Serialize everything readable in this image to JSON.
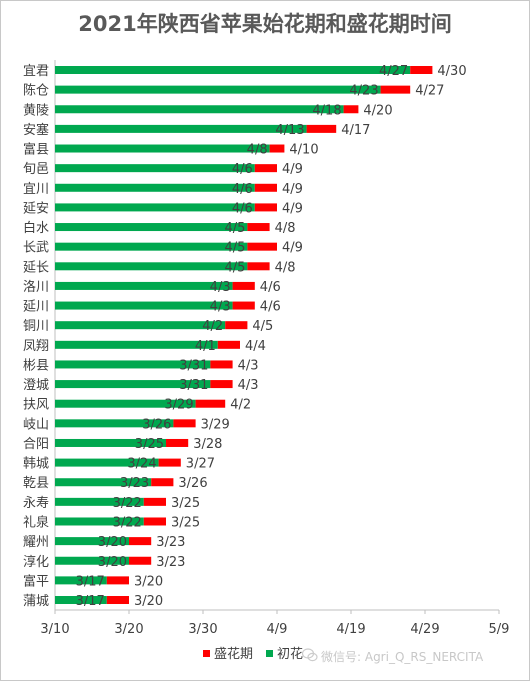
{
  "chart_data": {
    "type": "bar",
    "orientation": "horizontal",
    "stacked": true,
    "title": "2021年陕西省苹果始花期和盛花期时间",
    "categories": [
      "宜君",
      "陈仓",
      "黄陵",
      "安塞",
      "富县",
      "旬邑",
      "宜川",
      "延安",
      "白水",
      "长武",
      "延长",
      "洛川",
      "延川",
      "铜川",
      "凤翔",
      "彬县",
      "澄城",
      "扶风",
      "岐山",
      "合阳",
      "韩城",
      "乾县",
      "永寿",
      "礼泉",
      "耀州",
      "淳化",
      "富平",
      "蒲城"
    ],
    "series": [
      {
        "name": "初花",
        "color": "#00a84f",
        "dates": [
          "2021-04-27",
          "2021-04-23",
          "2021-04-18",
          "2021-04-13",
          "2021-04-08",
          "2021-04-06",
          "2021-04-06",
          "2021-04-06",
          "2021-04-05",
          "2021-04-05",
          "2021-04-05",
          "2021-04-03",
          "2021-04-03",
          "2021-04-02",
          "2021-04-01",
          "2021-03-31",
          "2021-03-31",
          "2021-03-29",
          "2021-03-26",
          "2021-03-25",
          "2021-03-24",
          "2021-03-23",
          "2021-03-22",
          "2021-03-22",
          "2021-03-20",
          "2021-03-20",
          "2021-03-17",
          "2021-03-17"
        ],
        "labels": [
          "4/27",
          "4/23",
          "4/18",
          "4/13",
          "4/8",
          "4/6",
          "4/6",
          "4/6",
          "4/5",
          "4/5",
          "4/5",
          "4/3",
          "4/3",
          "4/2",
          "4/1",
          "3/31",
          "3/31",
          "3/29",
          "3/26",
          "3/25",
          "3/24",
          "3/23",
          "3/22",
          "3/22",
          "3/20",
          "3/20",
          "3/17",
          "3/17"
        ]
      },
      {
        "name": "盛花期",
        "color": "#ff0000",
        "dates": [
          "2021-04-30",
          "2021-04-27",
          "2021-04-20",
          "2021-04-17",
          "2021-04-10",
          "2021-04-09",
          "2021-04-09",
          "2021-04-09",
          "2021-04-08",
          "2021-04-09",
          "2021-04-08",
          "2021-04-06",
          "2021-04-06",
          "2021-04-05",
          "2021-04-04",
          "2021-04-03",
          "2021-04-03",
          "2021-04-02",
          "2021-03-29",
          "2021-03-28",
          "2021-03-27",
          "2021-03-26",
          "2021-03-25",
          "2021-03-25",
          "2021-03-23",
          "2021-03-23",
          "2021-03-20",
          "2021-03-20"
        ],
        "labels": [
          "4/30",
          "4/27",
          "4/20",
          "4/17",
          "4/10",
          "4/9",
          "4/9",
          "4/9",
          "4/8",
          "4/9",
          "4/8",
          "4/6",
          "4/6",
          "4/5",
          "4/4",
          "4/3",
          "4/3",
          "4/2",
          "3/29",
          "3/28",
          "3/27",
          "3/26",
          "3/25",
          "3/25",
          "3/23",
          "3/23",
          "3/20",
          "3/20"
        ]
      }
    ],
    "x_ticks": [
      "3/10",
      "3/20",
      "3/30",
      "4/9",
      "4/19",
      "4/29",
      "5/9"
    ],
    "x_tick_dates": [
      "2021-03-10",
      "2021-03-20",
      "2021-03-30",
      "2021-04-09",
      "2021-04-19",
      "2021-04-29",
      "2021-05-09"
    ],
    "xlim": [
      "2021-03-10",
      "2021-05-09"
    ],
    "grid": false,
    "legend_position": "bottom-right"
  },
  "watermark": "微信号: Agri_Q_RS_NERCITA",
  "watermark_icon": "wechat-icon"
}
